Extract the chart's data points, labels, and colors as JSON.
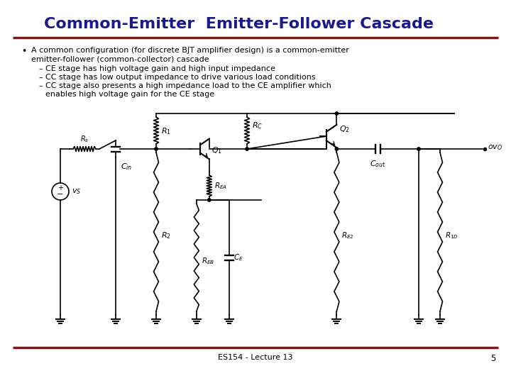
{
  "title": "Common-Emitter  Emitter-Follower Cascade",
  "title_color": "#1a1a8c",
  "title_fontsize": 16,
  "bg_color": "#ffffff",
  "dark_red": "#7b1a1a",
  "bullet_main_line1": "A common configuration (for discrete BJT amplifier design) is a common-emitter",
  "bullet_main_line2": "emitter-follower (common-collector) cascade",
  "sub_bullets": [
    "CE stage has high voltage gain and high input impedance",
    "CC stage has low output impedance to drive various load conditions",
    "CC stage also presents a high impedance load to the CE amplifier which",
    "enables high voltage gain for the CE stage"
  ],
  "footer_text": "ES154 - Lecture 13",
  "footer_page": "5"
}
